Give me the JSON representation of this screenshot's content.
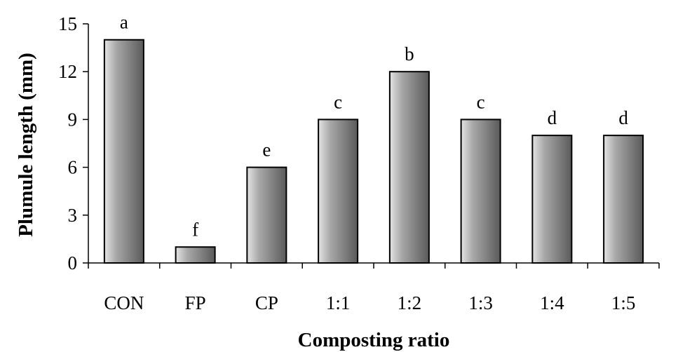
{
  "chart_data": {
    "type": "bar",
    "title": "",
    "xlabel": "Composting ratio",
    "ylabel": "Plumule length (mm)",
    "categories": [
      "CON",
      "FP",
      "CP",
      "1:1",
      "1:2",
      "1:3",
      "1:4",
      "1:5"
    ],
    "values": [
      14,
      1,
      6,
      9,
      12,
      9,
      8,
      8
    ],
    "significance_labels": [
      "a",
      "f",
      "e",
      "c",
      "b",
      "c",
      "d",
      "d"
    ],
    "ylim": [
      0,
      15
    ],
    "yticks": [
      "0",
      "3",
      "6",
      "9",
      "12",
      "15"
    ],
    "grid": false,
    "legend": "none",
    "colors": {
      "bar_light": "#e4e4e4",
      "bar_mid": "#a8a8a8",
      "bar_dark": "#5a5a5a",
      "axis": "#000000"
    }
  }
}
